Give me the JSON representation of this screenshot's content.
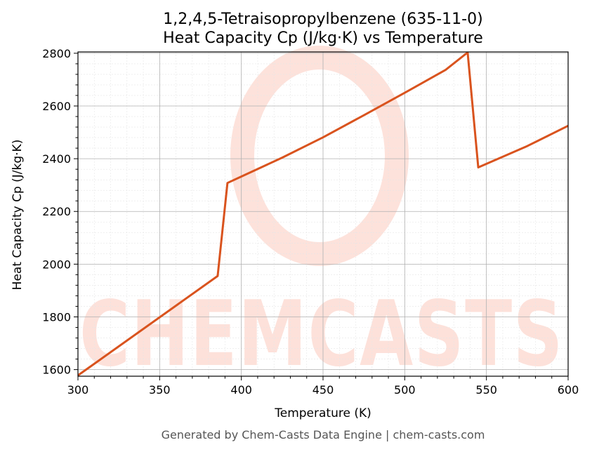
{
  "chart_data": {
    "type": "line",
    "title": "1,2,4,5-Tetraisopropylbenzene (635-11-0)",
    "subtitle": "Heat Capacity Cp (J/kg·K) vs Temperature",
    "xlabel": "Temperature (K)",
    "ylabel": "Heat Capacity Cp (J/kg·K)",
    "xlim": [
      300,
      600
    ],
    "ylim": [
      1575,
      2805
    ],
    "xticks": [
      300,
      350,
      400,
      450,
      500,
      550,
      600
    ],
    "yticks": [
      1600,
      1800,
      2000,
      2200,
      2400,
      2600,
      2800
    ],
    "grid": true,
    "series": [
      {
        "color": "#d9531e",
        "x": [
          300,
          385.5,
          391.5,
          425,
          450,
          475,
          500,
          525,
          538.5,
          545,
          575,
          600
        ],
        "y": [
          1578,
          1955,
          2308,
          2404,
          2481,
          2565,
          2650,
          2737,
          2803,
          2367,
          2448,
          2525
        ]
      }
    ]
  },
  "footer": "Generated by Chem-Casts Data Engine | chem-casts.com",
  "watermark": {
    "text": "CHEMCASTS",
    "color": "#fde0d9"
  }
}
